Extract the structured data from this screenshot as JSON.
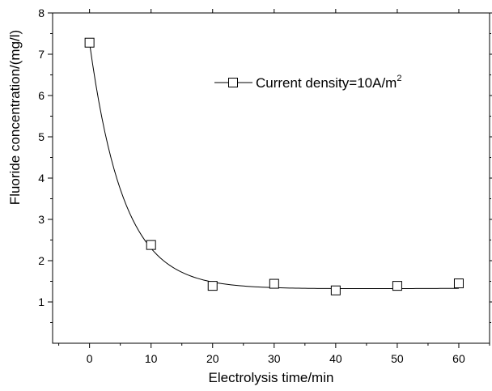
{
  "chart_data": {
    "type": "scatter",
    "xlabel": "Electrolysis time/min",
    "ylabel": "Fluoride concentration/(mg/l)",
    "xlim": [
      -6,
      65
    ],
    "ylim": [
      0,
      8
    ],
    "xticks": [
      "0",
      "10",
      "20",
      "30",
      "40",
      "50",
      "60"
    ],
    "yticks": [
      "1",
      "2",
      "3",
      "4",
      "5",
      "6",
      "7",
      "8"
    ],
    "legend_position": "top-right",
    "grid": false,
    "series": [
      {
        "name": "Current density=10A/m",
        "name_superscript": "2",
        "marker": "open-square",
        "line": "smooth",
        "x": [
          0,
          10,
          20,
          30,
          40,
          50,
          60
        ],
        "y": [
          7.28,
          2.38,
          1.39,
          1.44,
          1.28,
          1.39,
          1.45
        ]
      }
    ]
  }
}
